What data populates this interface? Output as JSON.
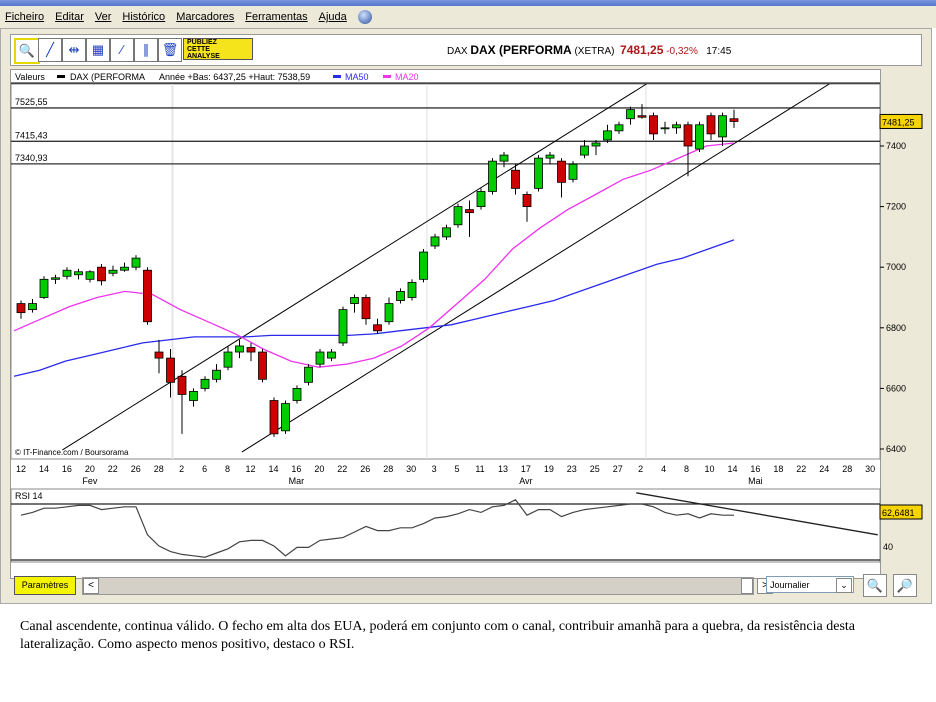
{
  "menu": [
    "Ficheiro",
    "Editar",
    "Ver",
    "Histórico",
    "Marcadores",
    "Ferramentas",
    "Ajuda"
  ],
  "toolbar": {
    "tools": [
      {
        "icon": "zoom-in-icon",
        "glyph": "🔍"
      },
      {
        "icon": "trendline-icon",
        "glyph": "╱"
      },
      {
        "icon": "horizontal-line-icon",
        "glyph": "⇹"
      },
      {
        "icon": "fibonacci-icon",
        "glyph": "▦"
      },
      {
        "icon": "channel-icon",
        "glyph": "⁄"
      },
      {
        "icon": "parallel-lines-icon",
        "glyph": "∥"
      },
      {
        "icon": "trash-icon",
        "glyph": "🗑"
      }
    ],
    "publish": [
      "PUBLIEZ",
      "CETTE",
      "ANALYSE"
    ]
  },
  "quote": {
    "code": "DAX",
    "name": "DAX (PERFORMA",
    "market": "(XETRA)",
    "price": "7481,25",
    "change": "-0,32%",
    "time": "17:45"
  },
  "legend": {
    "label": "Valeurs",
    "series": "DAX (PERFORMA",
    "range": "Année +Bas: 6437,25 +Haut: 7538,59",
    "ma50": "MA50",
    "ma20": "MA20"
  },
  "colors": {
    "up": "#00cc00",
    "down": "#cc0000",
    "ma50": "#2a2aee",
    "ma20": "#ee33ee",
    "last_bg": "#f5d400"
  },
  "credit": "© IT-Finance.com / Boursorama",
  "chart_data": {
    "type": "candlestick",
    "y_ticks": [
      6400,
      6600,
      6800,
      7000,
      7200,
      7400
    ],
    "ylim": [
      6370,
      7620
    ],
    "last_value_label": "7481,25",
    "levels": [
      {
        "value": 7525.55,
        "label": "7525,55"
      },
      {
        "value": 7415.43,
        "label": "7415,43"
      },
      {
        "value": 7340.93,
        "label": "7340,93"
      }
    ],
    "x_tick_labels": [
      "12",
      "14",
      "16",
      "20",
      "22",
      "26",
      "28",
      "2",
      "6",
      "8",
      "12",
      "14",
      "16",
      "20",
      "22",
      "26",
      "28",
      "30",
      "3",
      "5",
      "11",
      "13",
      "17",
      "19",
      "23",
      "25",
      "27",
      "2",
      "4",
      "8",
      "10",
      "14",
      "16",
      "18",
      "22",
      "24",
      "28",
      "30"
    ],
    "months": [
      {
        "label": "Fev",
        "tick": 3
      },
      {
        "label": "Mar",
        "tick": 12
      },
      {
        "label": "Avr",
        "tick": 22
      },
      {
        "label": "Mai",
        "tick": 32
      }
    ],
    "ohlc": [
      [
        6880,
        6850,
        6890,
        6830
      ],
      [
        6860,
        6880,
        6895,
        6850
      ],
      [
        6900,
        6960,
        6970,
        6895
      ],
      [
        6960,
        6965,
        6975,
        6945
      ],
      [
        6970,
        6990,
        7000,
        6960
      ],
      [
        6975,
        6985,
        6995,
        6960
      ],
      [
        6960,
        6985,
        6990,
        6950
      ],
      [
        7000,
        6955,
        7010,
        6940
      ],
      [
        6980,
        6990,
        7005,
        6970
      ],
      [
        6990,
        7000,
        7015,
        6985
      ],
      [
        7000,
        7030,
        7040,
        6990
      ],
      [
        6990,
        6820,
        7000,
        6810
      ],
      [
        6720,
        6700,
        6760,
        6650
      ],
      [
        6700,
        6620,
        6730,
        6570
      ],
      [
        6640,
        6580,
        6660,
        6450
      ],
      [
        6560,
        6590,
        6600,
        6540
      ],
      [
        6600,
        6630,
        6640,
        6590
      ],
      [
        6630,
        6660,
        6680,
        6620
      ],
      [
        6670,
        6720,
        6740,
        6660
      ],
      [
        6720,
        6740,
        6760,
        6700
      ],
      [
        6735,
        6720,
        6750,
        6690
      ],
      [
        6720,
        6630,
        6730,
        6620
      ],
      [
        6560,
        6450,
        6570,
        6440
      ],
      [
        6460,
        6550,
        6560,
        6450
      ],
      [
        6560,
        6600,
        6610,
        6550
      ],
      [
        6620,
        6670,
        6680,
        6610
      ],
      [
        6680,
        6720,
        6730,
        6670
      ],
      [
        6700,
        6720,
        6730,
        6690
      ],
      [
        6750,
        6860,
        6870,
        6740
      ],
      [
        6880,
        6900,
        6910,
        6850
      ],
      [
        6900,
        6830,
        6910,
        6810
      ],
      [
        6810,
        6790,
        6830,
        6780
      ],
      [
        6820,
        6880,
        6900,
        6810
      ],
      [
        6890,
        6920,
        6930,
        6880
      ],
      [
        6900,
        6950,
        6960,
        6890
      ],
      [
        6960,
        7050,
        7060,
        6950
      ],
      [
        7070,
        7100,
        7110,
        7060
      ],
      [
        7100,
        7130,
        7140,
        7090
      ],
      [
        7140,
        7200,
        7210,
        7130
      ],
      [
        7190,
        7180,
        7220,
        7100
      ],
      [
        7200,
        7250,
        7260,
        7190
      ],
      [
        7250,
        7350,
        7360,
        7240
      ],
      [
        7350,
        7370,
        7380,
        7330
      ],
      [
        7320,
        7260,
        7340,
        7240
      ],
      [
        7240,
        7200,
        7250,
        7150
      ],
      [
        7260,
        7360,
        7370,
        7250
      ],
      [
        7360,
        7370,
        7380,
        7340
      ],
      [
        7350,
        7280,
        7360,
        7230
      ],
      [
        7290,
        7340,
        7350,
        7280
      ],
      [
        7370,
        7400,
        7420,
        7360
      ],
      [
        7400,
        7410,
        7420,
        7370
      ],
      [
        7420,
        7450,
        7470,
        7410
      ],
      [
        7450,
        7470,
        7480,
        7440
      ],
      [
        7490,
        7520,
        7530,
        7470
      ],
      [
        7500,
        7495,
        7538,
        7490
      ],
      [
        7500,
        7440,
        7510,
        7420
      ],
      [
        7460,
        7460,
        7480,
        7440
      ],
      [
        7460,
        7470,
        7480,
        7440
      ],
      [
        7470,
        7400,
        7480,
        7300
      ],
      [
        7390,
        7470,
        7480,
        7380
      ],
      [
        7500,
        7440,
        7510,
        7420
      ],
      [
        7430,
        7500,
        7510,
        7400
      ],
      [
        7490,
        7481,
        7520,
        7460
      ]
    ],
    "ma50": [
      6640,
      6660,
      6690,
      6710,
      6730,
      6750,
      6760,
      6770,
      6770,
      6770,
      6775,
      6775,
      6775,
      6775,
      6780,
      6790,
      6800,
      6810,
      6830,
      6850,
      6870,
      6890,
      6920,
      6950,
      6980,
      7010,
      7030,
      7060,
      7090
    ],
    "ma20": [
      6790,
      6830,
      6870,
      6900,
      6920,
      6910,
      6860,
      6820,
      6780,
      6730,
      6690,
      6670,
      6680,
      6700,
      6740,
      6800,
      6880,
      6960,
      7060,
      7130,
      7190,
      7240,
      7290,
      7320,
      7360,
      7400,
      7410
    ],
    "trendlines": [
      {
        "from": [
          3.6,
          6397
        ],
        "to": [
          54.4,
          7605
        ]
      },
      {
        "from": [
          19.2,
          6390
        ],
        "to": [
          70.3,
          7605
        ]
      }
    ],
    "rsi": {
      "label": "RSI 14",
      "last_label": "62,6481",
      "tick_label": "40",
      "levels": [
        70,
        30
      ],
      "ylim": [
        28,
        80
      ],
      "values": [
        62,
        64,
        67,
        67,
        68,
        69,
        69,
        66,
        67,
        68,
        68,
        48,
        40,
        36,
        34,
        33,
        32,
        35,
        38,
        43,
        44,
        44,
        40,
        33,
        39,
        39,
        44,
        45,
        46,
        50,
        54,
        51,
        51,
        53,
        53,
        56,
        60,
        61,
        63,
        66,
        64,
        68,
        69,
        73,
        62,
        66,
        66,
        61,
        64,
        66,
        67,
        68,
        69,
        70,
        70,
        68,
        64,
        62,
        63,
        60,
        63,
        62,
        62
      ],
      "trendline": {
        "from": [
          53.5,
          78
        ],
        "to": [
          74.5,
          48
        ]
      }
    }
  },
  "controls": {
    "params": "Paramètres",
    "period": "Journalier"
  },
  "comment": "Canal ascendente, continua válido. O fecho em alta dos EUA, poderá em conjunto com o canal, contribuir amanhã para a quebra, da resistência desta lateralização. Como aspecto menos positivo, destaco o RSI."
}
